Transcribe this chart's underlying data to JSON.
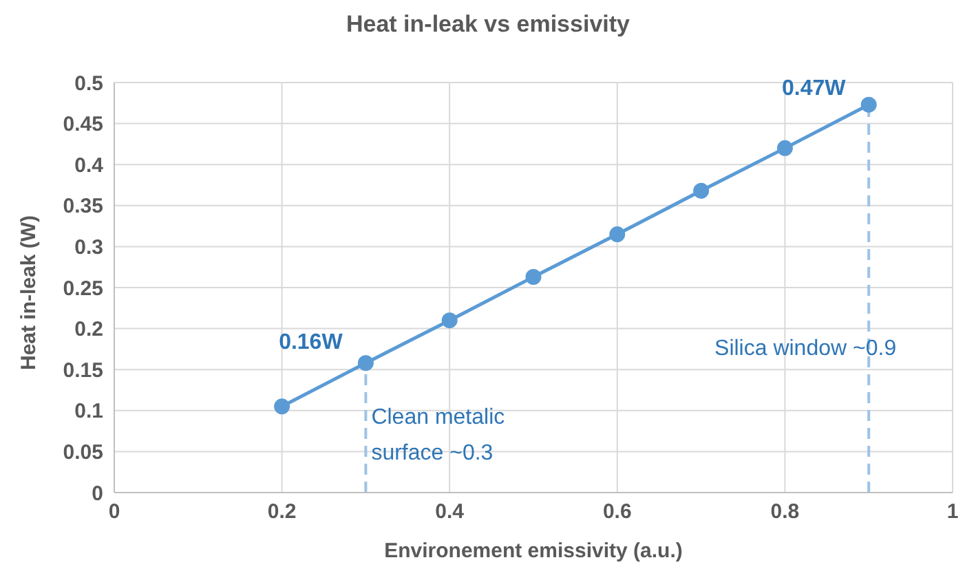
{
  "chart_data": {
    "type": "line",
    "title": "Heat in-leak vs emissivity",
    "xlabel": "Environement emissivity (a.u.)",
    "ylabel": "Heat in-leak (W)",
    "x": [
      0.2,
      0.3,
      0.4,
      0.5,
      0.6,
      0.7,
      0.8,
      0.9
    ],
    "series": [
      {
        "color": "#5b9bd5",
        "values": [
          0.105,
          0.158,
          0.21,
          0.263,
          0.315,
          0.368,
          0.42,
          0.473
        ]
      }
    ],
    "xlim": [
      0,
      1
    ],
    "xticks": [
      0,
      0.2,
      0.4,
      0.6,
      0.8,
      1
    ],
    "ylim": [
      0,
      0.5
    ],
    "yticks": [
      0,
      0.05,
      0.1,
      0.15,
      0.2,
      0.25,
      0.3,
      0.35,
      0.4,
      0.45,
      0.5
    ],
    "grid": true,
    "marker": "circle",
    "line_style": "solid",
    "legend": false,
    "ref_lines": [
      {
        "axis": "x",
        "value": 0.3,
        "label": "Clean metalic surface ~0.3",
        "color": "#9dc3e6",
        "line_style": "dashed"
      },
      {
        "axis": "x",
        "value": 0.9,
        "label": "Silica window ~0.9",
        "color": "#9dc3e6",
        "line_style": "dashed"
      }
    ],
    "annotations": [
      {
        "text": "0.16W",
        "x": 0.3,
        "y": 0.16
      },
      {
        "text": "0.47W",
        "x": 0.9,
        "y": 0.47
      }
    ]
  }
}
